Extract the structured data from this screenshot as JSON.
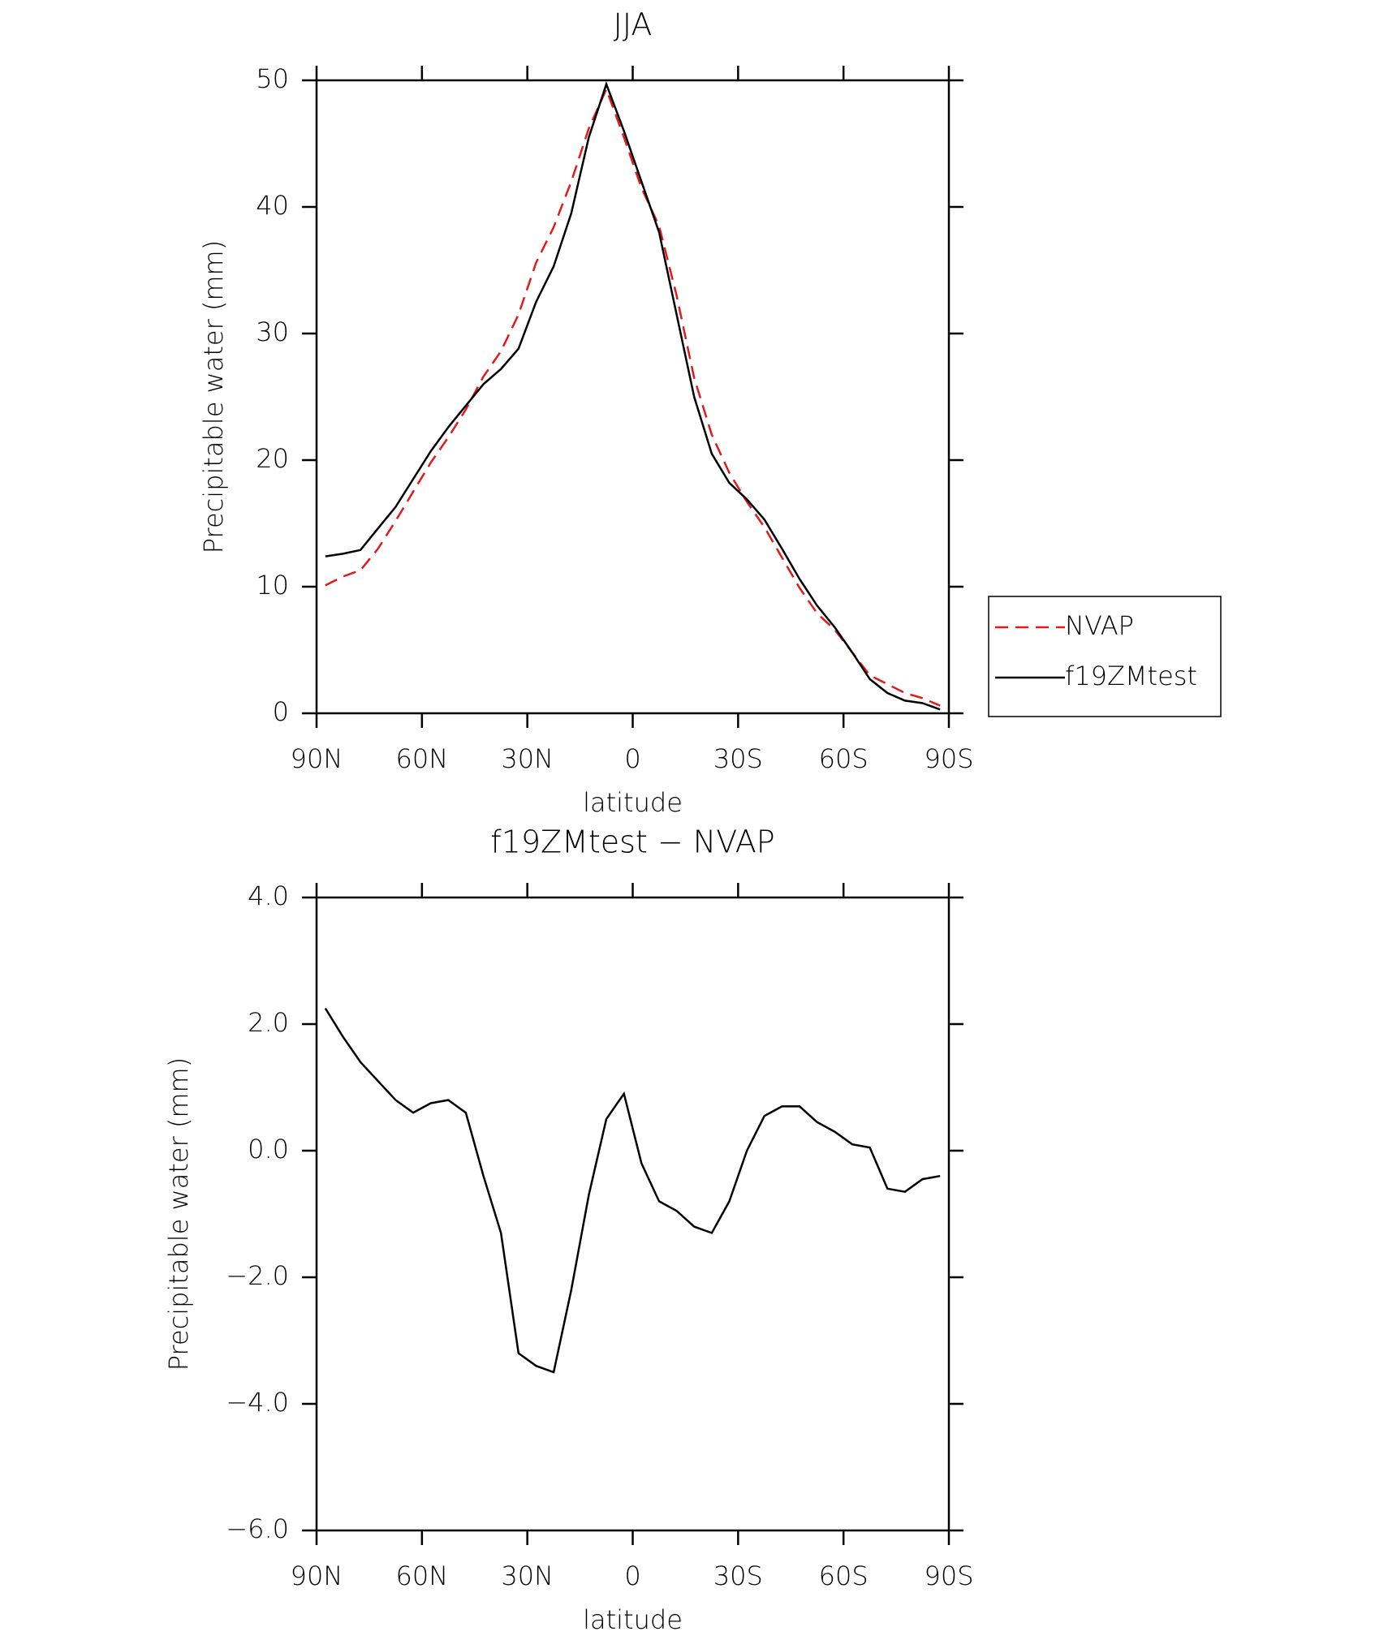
{
  "chart_data": [
    {
      "type": "line",
      "title": "JJA",
      "xlabel": "latitude",
      "ylabel": "Precipitable water (mm)",
      "x": [
        87.5,
        82.5,
        77.5,
        72.5,
        67.5,
        62.5,
        57.5,
        52.5,
        47.5,
        42.5,
        37.5,
        32.5,
        27.5,
        22.5,
        17.5,
        12.5,
        7.5,
        2.5,
        -2.5,
        -7.5,
        -12.5,
        -17.5,
        -22.5,
        -27.5,
        -32.5,
        -37.5,
        -42.5,
        -47.5,
        -52.5,
        -57.5,
        -62.5,
        -67.5,
        -72.5,
        -77.5,
        -82.5,
        -87.5
      ],
      "series": [
        {
          "name": "NVAP",
          "color": "#e31a1c",
          "linestyle": "dashed",
          "values": [
            10.1,
            10.8,
            11.3,
            13.0,
            15.2,
            17.5,
            19.8,
            21.8,
            24.0,
            26.6,
            28.6,
            31.5,
            35.6,
            38.4,
            42.0,
            46.2,
            49.3,
            45.5,
            41.5,
            38.5,
            33.0,
            26.5,
            22.0,
            19.0,
            16.7,
            14.7,
            12.3,
            9.9,
            7.9,
            6.6,
            4.8,
            3.0,
            2.3,
            1.6,
            1.2,
            0.6
          ]
        },
        {
          "name": "f19ZMtest",
          "color": "#000000",
          "linestyle": "solid",
          "values": [
            12.4,
            12.6,
            12.9,
            14.6,
            16.3,
            18.5,
            20.7,
            22.6,
            24.3,
            26.0,
            27.2,
            28.8,
            32.5,
            35.3,
            39.5,
            45.5,
            49.7,
            46.0,
            42.0,
            38.0,
            31.5,
            25.0,
            20.5,
            18.2,
            16.9,
            15.3,
            13.0,
            10.6,
            8.5,
            6.8,
            4.8,
            2.7,
            1.6,
            1.0,
            0.8,
            0.3
          ]
        }
      ],
      "xlim": [
        90,
        -90
      ],
      "xticks": [
        {
          "value": 90,
          "label": "90N"
        },
        {
          "value": 60,
          "label": "60N"
        },
        {
          "value": 30,
          "label": "30N"
        },
        0,
        {
          "value": -30,
          "label": "30S"
        },
        {
          "value": -60,
          "label": "60S"
        },
        {
          "value": -90,
          "label": "90S"
        }
      ],
      "ylim": [
        0,
        50
      ],
      "yticks": [
        0,
        10,
        20,
        30,
        40,
        50
      ],
      "legend": "outside-right"
    },
    {
      "type": "line",
      "title": "f19ZMtest − NVAP",
      "xlabel": "latitude",
      "ylabel": "Precipitable water (mm)",
      "x": [
        87.5,
        82.5,
        77.5,
        72.5,
        67.5,
        62.5,
        57.5,
        52.5,
        47.5,
        42.5,
        37.5,
        32.5,
        27.5,
        22.5,
        17.5,
        12.5,
        7.5,
        2.5,
        -2.5,
        -7.5,
        -12.5,
        -17.5,
        -22.5,
        -27.5,
        -32.5,
        -37.5,
        -42.5,
        -47.5,
        -52.5,
        -57.5,
        -62.5,
        -67.5,
        -72.5,
        -77.5,
        -82.5,
        -87.5
      ],
      "series": [
        {
          "color": "#000000",
          "linestyle": "solid",
          "values": [
            2.25,
            1.8,
            1.4,
            1.1,
            0.8,
            0.6,
            0.75,
            0.8,
            0.6,
            -0.4,
            -1.3,
            -3.2,
            -3.4,
            -3.5,
            -2.2,
            -0.7,
            0.5,
            0.9,
            -0.2,
            -0.8,
            -0.95,
            -1.2,
            -1.3,
            -0.8,
            0.0,
            0.55,
            0.7,
            0.7,
            0.45,
            0.3,
            0.1,
            0.05,
            -0.6,
            -0.65,
            -0.45,
            -0.4
          ]
        }
      ],
      "xlim": [
        90,
        -90
      ],
      "xticks": [
        {
          "value": 90,
          "label": "90N"
        },
        {
          "value": 60,
          "label": "60N"
        },
        {
          "value": 30,
          "label": "30N"
        },
        0,
        {
          "value": -30,
          "label": "30S"
        },
        {
          "value": -60,
          "label": "60S"
        },
        {
          "value": -90,
          "label": "90S"
        }
      ],
      "ylim": [
        -6,
        4
      ],
      "yticks": [
        {
          "value": -6,
          "label": "−6.0"
        },
        {
          "value": -4,
          "label": "−4.0"
        },
        {
          "value": -2,
          "label": "−2.0"
        },
        {
          "value": 0,
          "label": "0.0"
        },
        {
          "value": 2,
          "label": "2.0"
        },
        {
          "value": 4,
          "label": "4.0"
        }
      ]
    }
  ]
}
